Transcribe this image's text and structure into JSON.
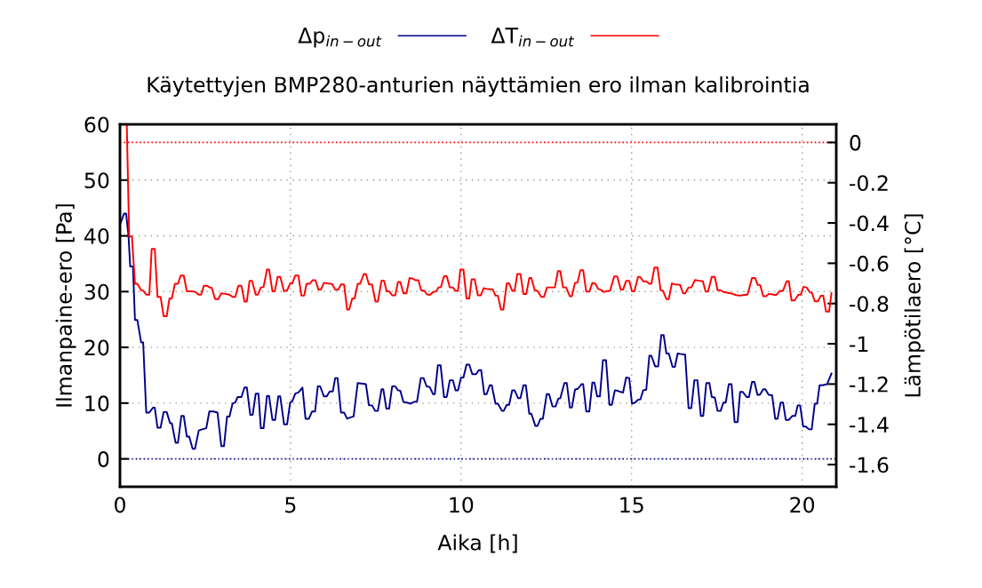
{
  "chart_data": {
    "type": "line",
    "title": "Käytettyjen BMP280-anturien näyttämien ero ilman kalibrointia",
    "xlabel": "Aika [h]",
    "ylabel": "Ilmanpaine-ero [Pa]",
    "y2label": "Lämpötilaero [°C]",
    "xlim": [
      0,
      21
    ],
    "xticks": [
      0,
      5,
      10,
      15,
      20
    ],
    "ylim": [
      -5,
      60
    ],
    "yticks": [
      0,
      10,
      20,
      30,
      40,
      50,
      60
    ],
    "y2lim": [
      -1.71,
      0.09
    ],
    "y2ticks": [
      0,
      -0.2,
      -0.4,
      -0.6,
      -0.8,
      -1,
      -1.2,
      -1.4,
      -1.6
    ],
    "grid": true,
    "legend": "top",
    "marker": "none",
    "line_style": "solid",
    "ref_lines": [
      {
        "axis": "y",
        "value": 0,
        "color": "#00008b",
        "line_style": "dotted"
      },
      {
        "axis": "y2",
        "value": 0,
        "color": "#ff0000",
        "line_style": "dotted"
      }
    ],
    "series": [
      {
        "name": "Δp$_{in−out}$",
        "color": "#00008b",
        "x": [
          0,
          0.12,
          0.18,
          0.25,
          0.3,
          0.38,
          0.44,
          0.51,
          0.62,
          0.68,
          0.77,
          0.86,
          0.97,
          1.02,
          1.1,
          1.19,
          1.28,
          1.37,
          1.47,
          1.52,
          1.63,
          1.7,
          1.8,
          1.87,
          1.96,
          2.03,
          2.13,
          2.2,
          2.31,
          2.41,
          2.53,
          2.62,
          2.74,
          2.86,
          2.97,
          3.05,
          3.14,
          3.21,
          3.3,
          3.38,
          3.45,
          3.56,
          3.65,
          3.72,
          3.82,
          3.89,
          3.98,
          4.06,
          4.13,
          4.21,
          4.31,
          4.37,
          4.47,
          4.55,
          4.64,
          4.7,
          4.81,
          4.9,
          4.99,
          5.05,
          5.14,
          5.23,
          5.35,
          5.44,
          5.54,
          5.63,
          5.72,
          5.8,
          5.87,
          5.98,
          6.06,
          6.15,
          6.24,
          6.31,
          6.38,
          6.48,
          6.57,
          6.66,
          6.74,
          6.85,
          6.97,
          7.21,
          7.3,
          7.39,
          7.48,
          7.56,
          7.67,
          7.72,
          7.81,
          7.89,
          7.98,
          8.07,
          8.15,
          8.22,
          8.31,
          8.41,
          8.52,
          8.61,
          8.71,
          8.82,
          8.9,
          8.99,
          9.08,
          9.18,
          9.23,
          9.32,
          9.4,
          9.5,
          9.58,
          9.67,
          9.76,
          9.84,
          9.91,
          10.0,
          10.07,
          10.16,
          10.24,
          10.33,
          10.44,
          10.52,
          10.59,
          10.68,
          10.75,
          10.84,
          10.9,
          11.01,
          11.08,
          11.2,
          11.25,
          11.34,
          11.41,
          11.5,
          11.57,
          11.67,
          11.74,
          11.83,
          11.9,
          12.0,
          12.06,
          12.18,
          12.24,
          12.33,
          12.4,
          12.51,
          12.58,
          12.68,
          12.77,
          12.85,
          12.91,
          13.03,
          13.1,
          13.19,
          13.25,
          13.34,
          13.43,
          13.53,
          13.58,
          13.67,
          13.76,
          13.85,
          13.91,
          13.99,
          14.07,
          14.16,
          14.25,
          14.35,
          14.42,
          14.51,
          14.6,
          14.68,
          14.75,
          14.84,
          14.93,
          15.01,
          15.1,
          15.19,
          15.26,
          15.34,
          15.43,
          15.52,
          15.58,
          15.69,
          15.78,
          15.87,
          15.94,
          16.02,
          16.09,
          16.2,
          16.27,
          16.35,
          16.45,
          16.57,
          16.67,
          16.75,
          16.84,
          16.93,
          17.03,
          17.1,
          17.19,
          17.28,
          17.35,
          17.44,
          17.52,
          17.61,
          17.69,
          17.76,
          17.85,
          17.93,
          18.02,
          18.11,
          18.18,
          18.26,
          18.37,
          18.44,
          18.53,
          18.6,
          18.69,
          18.76,
          18.86,
          18.92,
          19.02,
          19.12,
          19.21,
          19.28,
          19.37,
          19.44,
          19.52,
          19.61,
          19.71,
          19.8,
          19.87,
          19.94,
          20.03,
          20.11,
          20.2,
          20.28,
          20.37,
          20.44,
          20.51,
          20.6,
          20.73,
          20.86
        ],
        "values": [
          42,
          44,
          44,
          40,
          34.5,
          34.5,
          24.9,
          24.9,
          20.9,
          20.9,
          8.3,
          8.3,
          9.2,
          9.2,
          5.6,
          5.6,
          8.4,
          8.4,
          6.4,
          6.4,
          2.9,
          2.9,
          7.7,
          7.7,
          4,
          4,
          1.8,
          1.8,
          5.1,
          5.3,
          5.5,
          8.5,
          8.5,
          8.3,
          2.3,
          2.3,
          7.6,
          7.6,
          9.9,
          10.1,
          11.1,
          11.1,
          12.8,
          12.8,
          7.9,
          7.9,
          11.7,
          11.7,
          5.5,
          5.5,
          11.3,
          11.3,
          7,
          7,
          11.2,
          11.2,
          6.2,
          6.2,
          10.1,
          10.3,
          11.7,
          11.9,
          12.8,
          7.2,
          7.2,
          8.5,
          8.5,
          13,
          13,
          11.2,
          11.2,
          12.1,
          12.1,
          14.5,
          14.5,
          8.3,
          8.3,
          7.2,
          7.4,
          7.6,
          13.6,
          13.4,
          9.6,
          9.6,
          8.6,
          8.6,
          12.5,
          12.5,
          9,
          9,
          13,
          13,
          12.3,
          12.2,
          10.2,
          10.1,
          9.9,
          10.2,
          10.3,
          14.5,
          14.5,
          13,
          12.9,
          11.6,
          11.6,
          16.8,
          16.8,
          11.1,
          11.1,
          14.1,
          14.1,
          12.3,
          12.3,
          14.6,
          14.6,
          16.9,
          16.9,
          15.2,
          15.2,
          15.9,
          15.9,
          11.6,
          11.6,
          13.2,
          13.2,
          9.9,
          9.9,
          8.6,
          8.6,
          9.7,
          9.7,
          12.3,
          12.3,
          10.9,
          10.9,
          13.2,
          13.2,
          8.1,
          8.1,
          5.9,
          5.9,
          7.2,
          7.2,
          11.6,
          11.6,
          9.4,
          9.4,
          10.8,
          10.9,
          13.6,
          13.6,
          9.2,
          9.2,
          12.4,
          12.6,
          13.4,
          13.4,
          8.5,
          8.5,
          13.7,
          13.7,
          11.2,
          11.2,
          17.7,
          17.7,
          9.7,
          9.7,
          12.3,
          12.2,
          12,
          11.9,
          14.6,
          14.5,
          9.9,
          10.1,
          10.6,
          10.7,
          12.3,
          12.4,
          18.5,
          18.5,
          16.6,
          16.6,
          22.2,
          22.2,
          18.9,
          18.9,
          16.5,
          16.5,
          18.9,
          18.8,
          18.7,
          9.1,
          9.1,
          14.1,
          14.1,
          7.7,
          7.7,
          13.6,
          13.6,
          11.1,
          11,
          8.6,
          8.6,
          10.1,
          10.1,
          13.4,
          13.4,
          6.6,
          6.6,
          12,
          12,
          11.1,
          11.1,
          13.8,
          13.8,
          11.5,
          11.5,
          12.5,
          12.5,
          11.5,
          11.4,
          7.2,
          7.2,
          10.1,
          10.1,
          7,
          7,
          7.7,
          7.7,
          9.6,
          9.6,
          5.8,
          5.8,
          5.3,
          5.3,
          9.9,
          9.9,
          13.2,
          13.2,
          13.4,
          15.3
        ]
      },
      {
        "name": "ΔT$_{in−out}$",
        "color": "#ff0000",
        "axis": "y2",
        "x": [
          0.2,
          0.27,
          0.35,
          0.44,
          0.51,
          0.62,
          0.68,
          0.77,
          0.86,
          0.93,
          1.02,
          1.1,
          1.19,
          1.28,
          1.37,
          1.45,
          1.52,
          1.61,
          1.7,
          1.78,
          1.87,
          1.96,
          2.1,
          2.2,
          2.31,
          2.38,
          2.46,
          2.56,
          2.63,
          2.69,
          2.79,
          2.88,
          2.97,
          3.05,
          3.21,
          3.3,
          3.38,
          3.47,
          3.56,
          3.65,
          3.72,
          3.8,
          3.87,
          3.98,
          4.04,
          4.13,
          4.21,
          4.31,
          4.37,
          4.47,
          4.54,
          4.62,
          4.7,
          4.81,
          4.9,
          4.99,
          5.05,
          5.14,
          5.23,
          5.32,
          5.4,
          5.47,
          5.56,
          5.65,
          5.73,
          5.82,
          5.89,
          5.98,
          6.06,
          6.22,
          6.31,
          6.4,
          6.48,
          6.57,
          6.66,
          6.72,
          6.81,
          6.88,
          6.97,
          7.04,
          7.15,
          7.21,
          7.3,
          7.39,
          7.49,
          7.56,
          7.67,
          7.74,
          7.82,
          7.89,
          7.98,
          8.07,
          8.15,
          8.22,
          8.31,
          8.4,
          8.49,
          8.58,
          8.66,
          8.75,
          8.83,
          8.92,
          9.01,
          9.1,
          9.18,
          9.27,
          9.34,
          9.41,
          9.5,
          9.58,
          9.67,
          9.76,
          9.84,
          9.91,
          9.98,
          10.07,
          10.16,
          10.24,
          10.31,
          10.4,
          10.49,
          10.58,
          10.66,
          10.75,
          10.93,
          11.01,
          11.08,
          11.17,
          11.24,
          11.34,
          11.41,
          11.5,
          11.57,
          11.65,
          11.74,
          11.83,
          11.91,
          12.0,
          12.06,
          12.16,
          12.24,
          12.35,
          12.43,
          12.52,
          12.75,
          12.84,
          12.91,
          12.99,
          13.08,
          13.19,
          13.25,
          13.34,
          13.41,
          13.5,
          13.58,
          13.67,
          13.76,
          13.85,
          13.94,
          14.02,
          14.1,
          14.18,
          14.27,
          14.37,
          14.49,
          14.58,
          14.68,
          14.75,
          14.84,
          14.93,
          15.01,
          15.08,
          15.19,
          15.25,
          15.34,
          15.43,
          15.52,
          15.58,
          15.67,
          15.76,
          15.85,
          15.92,
          16.02,
          16.09,
          16.18,
          16.27,
          16.42,
          16.51,
          16.57,
          16.67,
          16.75,
          16.86,
          16.95,
          17.09,
          17.17,
          17.24,
          17.35,
          17.44,
          17.52,
          17.61,
          17.69,
          17.9,
          18.06,
          18.18,
          18.26,
          18.4,
          18.53,
          18.62,
          18.7,
          18.77,
          18.86,
          18.94,
          19.03,
          19.24,
          19.35,
          19.44,
          19.54,
          19.61,
          19.69,
          19.78,
          19.89,
          19.96,
          20.04,
          20.13,
          20.22,
          20.29,
          20.37,
          20.46,
          20.55,
          20.62,
          20.7,
          20.79,
          20.86
        ],
        "values": [
          0.088,
          -0.467,
          -0.467,
          -0.702,
          -0.702,
          -0.734,
          -0.736,
          -0.756,
          -0.756,
          -0.529,
          -0.529,
          -0.767,
          -0.767,
          -0.863,
          -0.863,
          -0.775,
          -0.775,
          -0.702,
          -0.702,
          -0.661,
          -0.661,
          -0.739,
          -0.739,
          -0.742,
          -0.756,
          -0.756,
          -0.712,
          -0.712,
          -0.72,
          -0.722,
          -0.778,
          -0.778,
          -0.749,
          -0.751,
          -0.756,
          -0.767,
          -0.767,
          -0.712,
          -0.712,
          -0.79,
          -0.79,
          -0.687,
          -0.687,
          -0.756,
          -0.756,
          -0.72,
          -0.718,
          -0.631,
          -0.631,
          -0.739,
          -0.739,
          -0.668,
          -0.668,
          -0.739,
          -0.734,
          -0.7,
          -0.7,
          -0.661,
          -0.661,
          -0.761,
          -0.761,
          -0.702,
          -0.702,
          -0.684,
          -0.684,
          -0.731,
          -0.731,
          -0.697,
          -0.699,
          -0.703,
          -0.731,
          -0.731,
          -0.705,
          -0.705,
          -0.83,
          -0.83,
          -0.775,
          -0.775,
          -0.702,
          -0.702,
          -0.653,
          -0.653,
          -0.705,
          -0.705,
          -0.79,
          -0.79,
          -0.686,
          -0.686,
          -0.739,
          -0.739,
          -0.759,
          -0.759,
          -0.693,
          -0.693,
          -0.749,
          -0.749,
          -0.673,
          -0.676,
          -0.684,
          -0.684,
          -0.734,
          -0.737,
          -0.756,
          -0.756,
          -0.743,
          -0.74,
          -0.72,
          -0.718,
          -0.664,
          -0.664,
          -0.72,
          -0.72,
          -0.737,
          -0.737,
          -0.631,
          -0.631,
          -0.775,
          -0.775,
          -0.68,
          -0.68,
          -0.759,
          -0.759,
          -0.724,
          -0.727,
          -0.73,
          -0.761,
          -0.761,
          -0.83,
          -0.83,
          -0.7,
          -0.7,
          -0.737,
          -0.737,
          -0.653,
          -0.653,
          -0.753,
          -0.753,
          -0.673,
          -0.673,
          -0.734,
          -0.737,
          -0.767,
          -0.767,
          -0.72,
          -0.72,
          -0.639,
          -0.639,
          -0.72,
          -0.72,
          -0.764,
          -0.764,
          -0.697,
          -0.697,
          -0.634,
          -0.634,
          -0.741,
          -0.741,
          -0.697,
          -0.702,
          -0.727,
          -0.732,
          -0.743,
          -0.738,
          -0.736,
          -0.665,
          -0.665,
          -0.731,
          -0.731,
          -0.687,
          -0.687,
          -0.739,
          -0.739,
          -0.668,
          -0.668,
          -0.69,
          -0.69,
          -0.702,
          -0.702,
          -0.621,
          -0.621,
          -0.734,
          -0.737,
          -0.778,
          -0.778,
          -0.7,
          -0.705,
          -0.707,
          -0.749,
          -0.749,
          -0.72,
          -0.72,
          -0.683,
          -0.686,
          -0.69,
          -0.741,
          -0.741,
          -0.668,
          -0.668,
          -0.734,
          -0.734,
          -0.743,
          -0.749,
          -0.758,
          -0.761,
          -0.758,
          -0.755,
          -0.673,
          -0.673,
          -0.708,
          -0.708,
          -0.764,
          -0.764,
          -0.752,
          -0.758,
          -0.737,
          -0.737,
          -0.69,
          -0.69,
          -0.785,
          -0.785,
          -0.756,
          -0.756,
          -0.717,
          -0.72,
          -0.743,
          -0.748,
          -0.789,
          -0.789,
          -0.761,
          -0.761,
          -0.84,
          -0.84,
          -0.749
        ]
      }
    ]
  }
}
